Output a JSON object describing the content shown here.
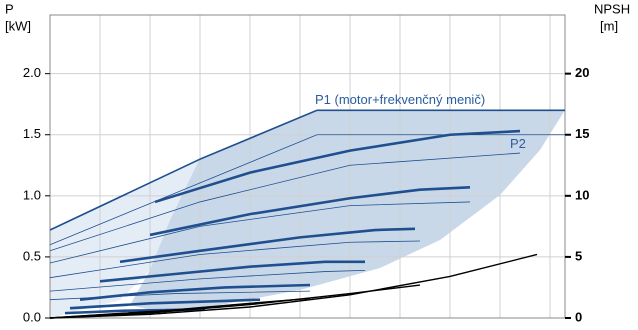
{
  "chart_data": {
    "type": "line",
    "y_label_top": "P",
    "y_label": "[kW]",
    "y2_label_top": "NPSH",
    "y2_label": "[m]",
    "annotations": [
      {
        "text": "P1 (motor+frekvenčný menič)",
        "x": 5.3,
        "y": 1.78
      },
      {
        "text": "P2",
        "x": 9.2,
        "y": 1.42
      }
    ],
    "xlim": [
      0,
      10.3
    ],
    "xgrid": [
      0,
      1,
      2,
      3,
      4,
      5,
      6,
      7,
      8,
      9,
      10
    ],
    "ylim": [
      0,
      2.48
    ],
    "yticks": [
      {
        "value": 0,
        "label": "0.0"
      },
      {
        "value": 0.5,
        "label": "0.5"
      },
      {
        "value": 1,
        "label": "1.0"
      },
      {
        "value": 1.5,
        "label": "1.5"
      },
      {
        "value": 2,
        "label": "2.0"
      }
    ],
    "y2lim": [
      0,
      24.8
    ],
    "y2ticks": [
      0,
      5,
      10,
      15,
      20
    ],
    "grid": true,
    "series": [
      {
        "color": "#1f4f8f",
        "style": "envelope",
        "x": [
          0,
          3,
          5.34,
          10.3
        ],
        "values": [
          0.72,
          1.3,
          1.7,
          1.7
        ]
      },
      {
        "color": "#1f4f8f",
        "style": "thin",
        "x": [
          0,
          5.34,
          10.3
        ],
        "values": [
          0.6,
          1.5,
          1.5
        ]
      },
      {
        "color": "#1f4f8f",
        "style": "thick",
        "x": [
          2.1,
          4,
          6,
          8,
          9.4
        ],
        "values": [
          0.95,
          1.19,
          1.37,
          1.5,
          1.53
        ]
      },
      {
        "color": "#1f4f8f",
        "style": "thick",
        "x": [
          2,
          4,
          6,
          7.4,
          8.4
        ],
        "values": [
          0.68,
          0.85,
          0.98,
          1.05,
          1.07
        ]
      },
      {
        "color": "#1f4f8f",
        "style": "thick",
        "x": [
          1.4,
          3,
          5,
          6.5,
          7.3
        ],
        "values": [
          0.46,
          0.55,
          0.66,
          0.72,
          0.73
        ]
      },
      {
        "color": "#1f4f8f",
        "style": "thick",
        "x": [
          1,
          2.5,
          4,
          5.5,
          6.3
        ],
        "values": [
          0.3,
          0.36,
          0.42,
          0.46,
          0.46
        ]
      },
      {
        "color": "#1f4f8f",
        "style": "thick",
        "x": [
          0.6,
          2,
          3.5,
          5.2
        ],
        "values": [
          0.15,
          0.21,
          0.25,
          0.27
        ]
      },
      {
        "color": "#1f4f8f",
        "style": "thick",
        "x": [
          0.4,
          2,
          3.5,
          4.2
        ],
        "values": [
          0.08,
          0.12,
          0.14,
          0.15
        ]
      },
      {
        "color": "#1f4f8f",
        "style": "thick",
        "x": [
          0.3,
          1.5,
          3.1
        ],
        "values": [
          0.04,
          0.06,
          0.07
        ]
      },
      {
        "color": "#1f4f8f",
        "style": "thin",
        "x": [
          0,
          3,
          6,
          9.4
        ],
        "values": [
          0.55,
          0.95,
          1.25,
          1.35
        ]
      },
      {
        "color": "#1f4f8f",
        "style": "thin",
        "x": [
          0,
          3,
          6,
          8.4
        ],
        "values": [
          0.45,
          0.75,
          0.92,
          0.95
        ]
      },
      {
        "color": "#1f4f8f",
        "style": "thin",
        "x": [
          0,
          3,
          6,
          7.4
        ],
        "values": [
          0.33,
          0.52,
          0.62,
          0.63
        ]
      },
      {
        "color": "#1f4f8f",
        "style": "thin",
        "x": [
          0,
          3,
          5.5,
          6.3
        ],
        "values": [
          0.22,
          0.32,
          0.38,
          0.39
        ]
      },
      {
        "color": "#1f4f8f",
        "style": "thin",
        "x": [
          0,
          2.5,
          5.2
        ],
        "values": [
          0.15,
          0.2,
          0.22
        ]
      },
      {
        "color": "#000000",
        "style": "npsh",
        "axis": "y2",
        "x": [
          0,
          2,
          4,
          6,
          8,
          9.74
        ],
        "values": [
          0,
          0.3,
          0.9,
          1.9,
          3.4,
          5.2
        ]
      },
      {
        "color": "#000000",
        "style": "npsh",
        "axis": "y2",
        "x": [
          0,
          2,
          4,
          6,
          7.4
        ],
        "values": [
          0,
          0.4,
          1.1,
          2.0,
          2.7
        ]
      },
      {
        "color": "#000000",
        "style": "npsh",
        "axis": "y2",
        "x": [
          0,
          2,
          4,
          5.2
        ],
        "values": [
          0,
          0.5,
          1.2,
          1.6
        ]
      },
      {
        "color": "#000000",
        "style": "npsh",
        "axis": "y2",
        "x": [
          0,
          1.5,
          3.1
        ],
        "values": [
          0,
          0.4,
          0.8
        ]
      }
    ]
  }
}
